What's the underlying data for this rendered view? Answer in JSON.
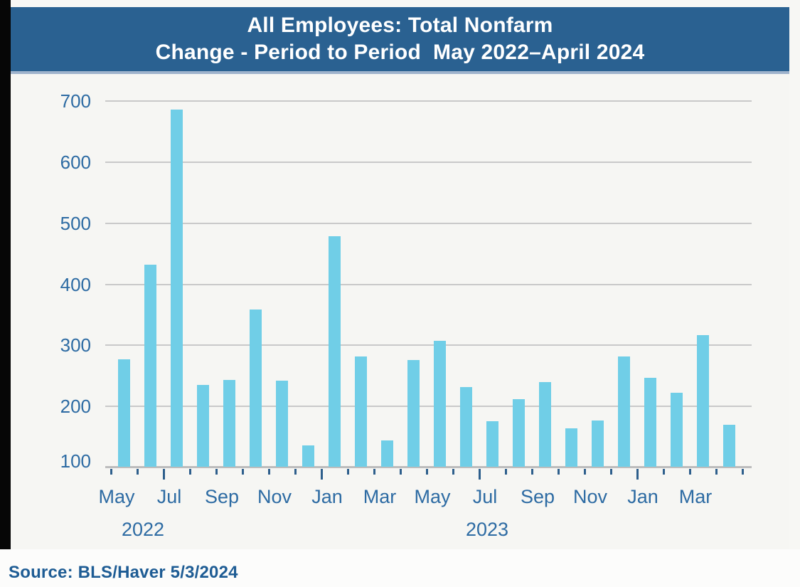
{
  "title": {
    "line1": "All Employees: Total Nonfarm",
    "line2": "Change - Period to Period  May 2022–April 2024"
  },
  "source_caption": "Source: BLS/Haver 5/3/2024",
  "colors": {
    "header_bg": "#2A6191",
    "header_border": "#9FB3CC",
    "bar": "#70CEE7",
    "axis_text": "#2D6BA3",
    "source_text": "#1E5C94",
    "gridline": "#C9C9C9",
    "tick_mark": "#2E5F8C",
    "plot_bg": "#F6F6F3"
  },
  "chart_data": {
    "type": "bar",
    "title": "All Employees: Total Nonfarm — Change - Period to Period, May 2022–April 2024",
    "x": [
      "May 2022",
      "Jun 2022",
      "Jul 2022",
      "Aug 2022",
      "Sep 2022",
      "Oct 2022",
      "Nov 2022",
      "Dec 2022",
      "Jan 2023",
      "Feb 2023",
      "Mar 2023",
      "Apr 2023",
      "May 2023",
      "Jun 2023",
      "Jul 2023",
      "Aug 2023",
      "Sep 2023",
      "Oct 2023",
      "Nov 2023",
      "Dec 2023",
      "Jan 2024",
      "Feb 2024",
      "Mar 2024",
      "Apr 2024"
    ],
    "values": [
      277,
      432,
      686,
      235,
      243,
      359,
      242,
      136,
      479,
      282,
      144,
      276,
      307,
      232,
      176,
      212,
      240,
      164,
      177,
      282,
      247,
      222,
      317,
      170
    ],
    "xlabel": "",
    "ylabel": "",
    "y_ticks": [
      100,
      200,
      300,
      400,
      500,
      600,
      700
    ],
    "ylim": [
      100,
      730
    ],
    "grid": true,
    "legend": "none",
    "x_tick_labels": [
      "May",
      "Jul",
      "Sep",
      "Nov",
      "Jan",
      "Mar",
      "May",
      "Jul",
      "Sep",
      "Nov",
      "Jan",
      "Mar"
    ],
    "x_year_labels": [
      "2022",
      "2023"
    ]
  }
}
